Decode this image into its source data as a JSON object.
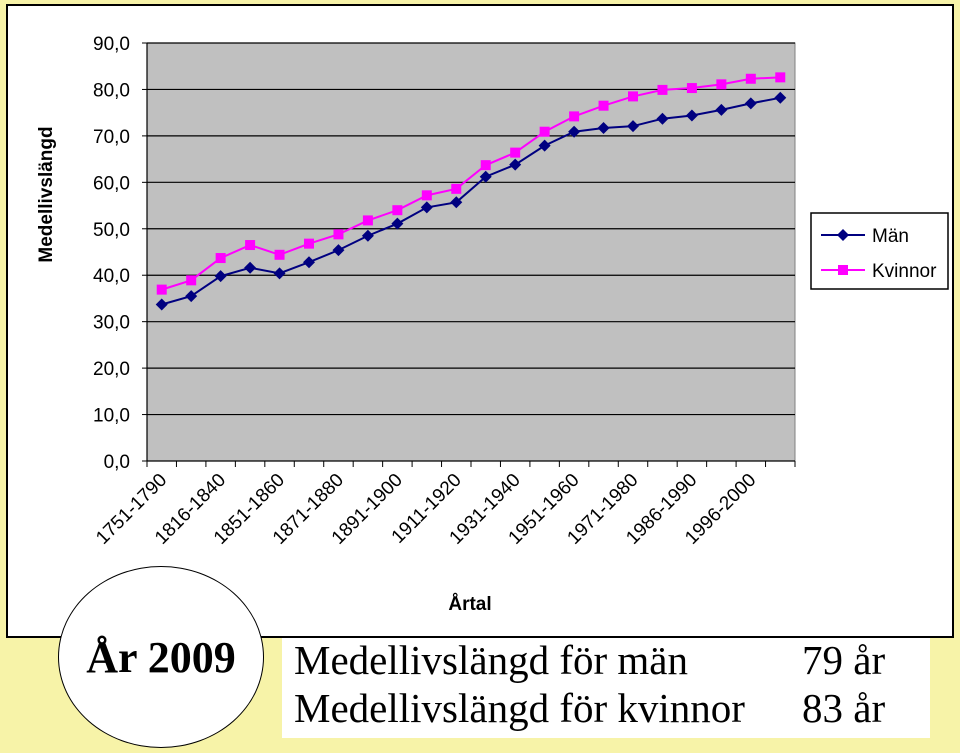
{
  "chart_data": {
    "type": "line",
    "ylabel": "Medellivslängd",
    "xlabel": "Årtal",
    "ylim": [
      0,
      90
    ],
    "ytick_labels": [
      "0,0",
      "10,0",
      "20,0",
      "30,0",
      "40,0",
      "50,0",
      "60,0",
      "70,0",
      "80,0",
      "90,0"
    ],
    "xtick_labels": [
      "1751-1790",
      "1816-1840",
      "1851-1860",
      "1871-1880",
      "1891-1900",
      "1911-1920",
      "1931-1940",
      "1951-1960",
      "1971-1980",
      "1986-1990",
      "1996-2000"
    ],
    "grid": true,
    "plot_background": "#c0c0c0",
    "legend_position": "right",
    "series": [
      {
        "name": "Män",
        "color": "#000080",
        "marker": "diamond",
        "values": [
          33.7,
          35.5,
          39.8,
          41.6,
          40.4,
          42.8,
          45.4,
          48.5,
          51.1,
          54.6,
          55.7,
          61.2,
          63.8,
          67.9,
          70.9,
          71.7,
          72.1,
          73.7,
          74.4,
          75.6,
          77.0,
          78.2
        ]
      },
      {
        "name": "Kvinnor",
        "color": "#ff00ff",
        "marker": "square",
        "values": [
          36.9,
          38.9,
          43.7,
          46.5,
          44.4,
          46.8,
          48.8,
          51.8,
          54.0,
          57.2,
          58.6,
          63.7,
          66.4,
          70.9,
          74.2,
          76.5,
          78.5,
          79.9,
          80.3,
          81.1,
          82.3,
          82.6
        ]
      }
    ]
  },
  "badge": {
    "text": "År 2009"
  },
  "info": {
    "men_label": "Medellivslängd för män",
    "men_value": "79 år",
    "women_label": "Medellivslängd för kvinnor",
    "women_value": "83 år"
  }
}
